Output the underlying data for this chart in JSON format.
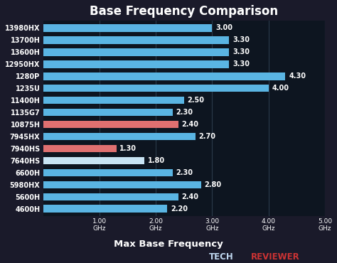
{
  "title": "Base Frequency Comparison",
  "xlabel": "Max Base Frequency",
  "categories": [
    "13980HX",
    "13700H",
    "13600H",
    "12950HX",
    "1280P",
    "1235U",
    "11400H",
    "1135G7",
    "10875H",
    "7945HX",
    "7940HS",
    "7640HS",
    "6600H",
    "5980HX",
    "5600H",
    "4600H"
  ],
  "values": [
    2.2,
    2.4,
    2.8,
    2.3,
    1.8,
    1.3,
    2.7,
    2.4,
    2.3,
    2.5,
    4.0,
    4.3,
    3.3,
    3.3,
    3.3,
    3.0
  ],
  "bar_colors": [
    "#5ab5e3",
    "#5ab5e3",
    "#5ab5e3",
    "#5ab5e3",
    "#c8e4f4",
    "#e07070",
    "#5ab5e3",
    "#e07070",
    "#5ab5e3",
    "#5ab5e3",
    "#5ab5e3",
    "#5ab5e3",
    "#5ab5e3",
    "#5ab5e3",
    "#5ab5e3",
    "#5ab5e3"
  ],
  "label_colors": [
    "#5ab5e3",
    "#d0e8f5",
    "#d0e8f5",
    "#5ab5e3",
    "#d0e8f5",
    "#5ab5e3",
    "#d0e8f5",
    "#e87878",
    "#d0e8f5",
    "#e87878",
    "#e87878",
    "#e87878",
    "#d0e8f5",
    "#e87878",
    "#d0e8f5",
    "#d0e8f5"
  ],
  "xlim": [
    0,
    5.0
  ],
  "xticks": [
    1.0,
    2.0,
    3.0,
    4.0,
    5.0
  ],
  "xtick_labels": [
    "1.00\nGHz",
    "2.00\nGHz",
    "3.00\nGHz",
    "4.00\nGHz",
    "5.00\nGHz"
  ],
  "bg_color": "#1a1a2a",
  "plot_bg_color": "#0d1520",
  "text_color": "#ffffff",
  "title_fontsize": 12,
  "label_fontsize": 7,
  "value_fontsize": 7,
  "watermark_color_tech": "#c0d8f0",
  "watermark_color_reviewer": "#cc3333",
  "grid_color": "#2a3a4a"
}
